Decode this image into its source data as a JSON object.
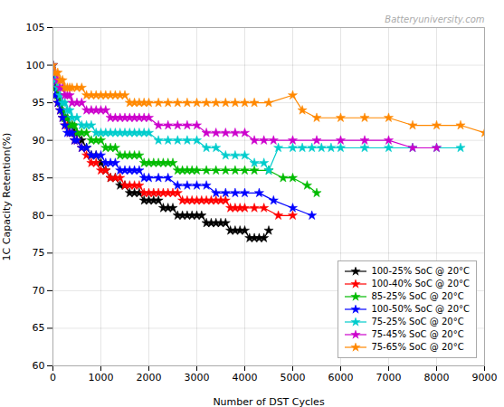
{
  "chart_data": {
    "type": "line",
    "annotations": [
      "Batteryuniversity.com"
    ],
    "xlabel": "Number of DST Cycles",
    "ylabel": "1C Capacity Retention(%)",
    "xlim": [
      0,
      9000
    ],
    "ylim": [
      60,
      105
    ],
    "xticks": [
      0,
      1000,
      2000,
      3000,
      4000,
      5000,
      6000,
      7000,
      8000,
      9000
    ],
    "yticks": [
      60,
      65,
      70,
      75,
      80,
      85,
      90,
      95,
      100,
      105
    ],
    "grid": true,
    "legend": "lower right",
    "marker": "star",
    "series": [
      {
        "name": "100-25% SoC @ 20°C",
        "color": "#000000",
        "x": [
          0,
          50,
          100,
          150,
          200,
          250,
          300,
          350,
          400,
          450,
          500,
          600,
          700,
          800,
          900,
          1000,
          1100,
          1200,
          1300,
          1400,
          1500,
          1600,
          1700,
          1800,
          1900,
          2000,
          2100,
          2200,
          2300,
          2400,
          2500,
          2600,
          2700,
          2800,
          2900,
          3000,
          3100,
          3200,
          3300,
          3400,
          3500,
          3600,
          3700,
          3800,
          3900,
          4000,
          4100,
          4200,
          4300,
          4400,
          4500
        ],
        "values": [
          100,
          97,
          96,
          95,
          94,
          93,
          93,
          92,
          92,
          91,
          91,
          90,
          89,
          88,
          88,
          87,
          86,
          85,
          85,
          84,
          84,
          83,
          83,
          83,
          82,
          82,
          82,
          82,
          81,
          81,
          81,
          80,
          80,
          80,
          80,
          80,
          80,
          79,
          79,
          79,
          79,
          79,
          78,
          78,
          78,
          78,
          77,
          77,
          77,
          77,
          78
        ]
      },
      {
        "name": "100-40% SoC @ 20°C",
        "color": "#ff0000",
        "x": [
          0,
          50,
          100,
          150,
          200,
          250,
          300,
          350,
          400,
          450,
          500,
          600,
          700,
          800,
          900,
          1000,
          1100,
          1200,
          1300,
          1400,
          1500,
          1600,
          1700,
          1800,
          1900,
          2000,
          2100,
          2200,
          2300,
          2400,
          2500,
          2600,
          2700,
          2800,
          2900,
          3000,
          3100,
          3200,
          3300,
          3400,
          3500,
          3600,
          3700,
          3800,
          3900,
          4000,
          4200,
          4400,
          4700,
          5000
        ],
        "values": [
          100,
          96,
          95,
          94,
          93,
          92,
          92,
          91,
          91,
          90,
          90,
          89,
          88,
          87,
          87,
          86,
          86,
          85,
          85,
          85,
          84,
          84,
          84,
          84,
          83,
          83,
          83,
          83,
          83,
          83,
          83,
          83,
          82,
          82,
          82,
          82,
          82,
          82,
          82,
          82,
          82,
          82,
          81,
          81,
          81,
          81,
          81,
          81,
          80,
          80
        ]
      },
      {
        "name": "85-25% SoC @ 20°C",
        "color": "#00bb00",
        "x": [
          0,
          50,
          100,
          150,
          200,
          250,
          300,
          350,
          400,
          450,
          500,
          600,
          700,
          800,
          900,
          1000,
          1100,
          1200,
          1300,
          1400,
          1500,
          1600,
          1700,
          1800,
          1900,
          2000,
          2100,
          2200,
          2300,
          2400,
          2500,
          2600,
          2700,
          2800,
          2900,
          3000,
          3200,
          3400,
          3600,
          3800,
          4000,
          4200,
          4500,
          4800,
          5000,
          5300,
          5500
        ],
        "values": [
          100,
          97,
          96,
          95,
          94,
          93,
          93,
          92,
          92,
          92,
          91,
          91,
          91,
          90,
          90,
          90,
          89,
          89,
          89,
          88,
          88,
          88,
          88,
          88,
          87,
          87,
          87,
          87,
          87,
          87,
          87,
          86,
          86,
          86,
          86,
          86,
          86,
          86,
          86,
          86,
          86,
          86,
          86,
          85,
          85,
          84,
          83
        ]
      },
      {
        "name": "100-50% SoC @ 20°C",
        "color": "#0000ff",
        "x": [
          0,
          50,
          100,
          150,
          200,
          250,
          300,
          350,
          400,
          450,
          500,
          600,
          700,
          800,
          900,
          1000,
          1100,
          1200,
          1300,
          1400,
          1500,
          1600,
          1700,
          1800,
          1900,
          2000,
          2200,
          2400,
          2600,
          2800,
          3000,
          3200,
          3400,
          3600,
          3800,
          4000,
          4300,
          4600,
          5000,
          5400
        ],
        "values": [
          100,
          96,
          95,
          94,
          93,
          92,
          91,
          91,
          91,
          90,
          90,
          89,
          89,
          88,
          88,
          88,
          87,
          87,
          87,
          86,
          86,
          86,
          86,
          86,
          85,
          85,
          85,
          85,
          84,
          84,
          84,
          84,
          83,
          83,
          83,
          83,
          83,
          82,
          81,
          80
        ]
      },
      {
        "name": "75-25% SoC @ 20°C",
        "color": "#00cccc",
        "x": [
          0,
          50,
          100,
          150,
          200,
          250,
          300,
          350,
          400,
          500,
          600,
          700,
          800,
          900,
          1000,
          1100,
          1200,
          1300,
          1400,
          1500,
          1600,
          1700,
          1800,
          1900,
          2000,
          2200,
          2400,
          2600,
          2800,
          3000,
          3200,
          3400,
          3600,
          3800,
          4000,
          4200,
          4400,
          4500,
          4700,
          5000,
          5200,
          5400,
          5600,
          5800,
          6000,
          6500,
          7000,
          7500,
          8000,
          8500
        ],
        "values": [
          100,
          98,
          97,
          96,
          95,
          95,
          94,
          94,
          93,
          93,
          92,
          92,
          92,
          91,
          91,
          91,
          91,
          91,
          91,
          91,
          91,
          91,
          91,
          91,
          91,
          90,
          90,
          90,
          90,
          90,
          89,
          89,
          88,
          88,
          88,
          87,
          87,
          86,
          89,
          89,
          89,
          89,
          89,
          89,
          89,
          89,
          89,
          89,
          89,
          89
        ]
      },
      {
        "name": "75-45% SoC @ 20°C",
        "color": "#cc00cc",
        "x": [
          0,
          50,
          100,
          150,
          200,
          250,
          300,
          350,
          400,
          500,
          600,
          700,
          800,
          900,
          1000,
          1100,
          1200,
          1300,
          1400,
          1500,
          1600,
          1700,
          1800,
          1900,
          2000,
          2200,
          2400,
          2600,
          2800,
          3000,
          3200,
          3400,
          3600,
          3800,
          4000,
          4200,
          4400,
          4600,
          5000,
          5500,
          6000,
          6500,
          7000,
          7500,
          8000
        ],
        "values": [
          100,
          99,
          98,
          97,
          97,
          96,
          96,
          96,
          95,
          95,
          95,
          94,
          94,
          94,
          94,
          94,
          93,
          93,
          93,
          93,
          93,
          93,
          93,
          93,
          93,
          92,
          92,
          92,
          92,
          92,
          91,
          91,
          91,
          91,
          91,
          90,
          90,
          90,
          90,
          90,
          90,
          90,
          90,
          89,
          89
        ]
      },
      {
        "name": "75-65% SoC @ 20°C",
        "color": "#ff8800",
        "x": [
          0,
          50,
          100,
          150,
          200,
          250,
          300,
          350,
          400,
          500,
          600,
          700,
          800,
          900,
          1000,
          1100,
          1200,
          1300,
          1400,
          1500,
          1600,
          1700,
          1800,
          1900,
          2000,
          2200,
          2400,
          2600,
          2800,
          3000,
          3200,
          3400,
          3600,
          3800,
          4000,
          4200,
          4500,
          5000,
          5200,
          5500,
          6000,
          6500,
          7000,
          7500,
          8000,
          8500,
          9000
        ],
        "values": [
          100,
          99,
          99,
          98,
          98,
          97,
          97,
          97,
          97,
          97,
          97,
          96,
          96,
          96,
          96,
          96,
          96,
          96,
          96,
          96,
          95,
          95,
          95,
          95,
          95,
          95,
          95,
          95,
          95,
          95,
          95,
          95,
          95,
          95,
          95,
          95,
          95,
          96,
          94,
          93,
          93,
          93,
          93,
          92,
          92,
          92,
          91
        ]
      }
    ]
  }
}
